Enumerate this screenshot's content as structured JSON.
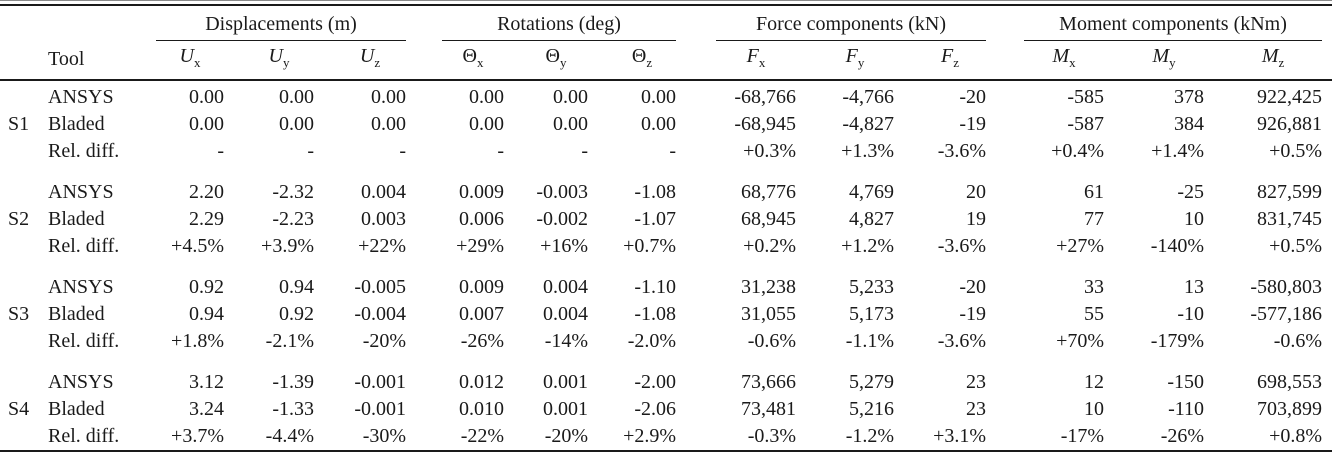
{
  "table": {
    "tool_header": "Tool",
    "groups": [
      {
        "label": "Displacements (m)",
        "columns": [
          {
            "base": "U",
            "sub": "x",
            "italic": true
          },
          {
            "base": "U",
            "sub": "y",
            "italic": true
          },
          {
            "base": "U",
            "sub": "z",
            "italic": true
          }
        ]
      },
      {
        "label": "Rotations (deg)",
        "columns": [
          {
            "base": "Θ",
            "sub": "x",
            "italic": false
          },
          {
            "base": "Θ",
            "sub": "y",
            "italic": false
          },
          {
            "base": "Θ",
            "sub": "z",
            "italic": false
          }
        ]
      },
      {
        "label": "Force components (kN)",
        "columns": [
          {
            "base": "F",
            "sub": "x",
            "italic": true
          },
          {
            "base": "F",
            "sub": "y",
            "italic": true
          },
          {
            "base": "F",
            "sub": "z",
            "italic": true
          }
        ]
      },
      {
        "label": "Moment components (kNm)",
        "columns": [
          {
            "base": "M",
            "sub": "x",
            "italic": true
          },
          {
            "base": "M",
            "sub": "y",
            "italic": true
          },
          {
            "base": "M",
            "sub": "z",
            "italic": true
          }
        ]
      }
    ],
    "blocks": [
      {
        "id": "S1",
        "rows": [
          {
            "tool": "ANSYS",
            "values": [
              "0.00",
              "0.00",
              "0.00",
              "0.00",
              "0.00",
              "0.00",
              "-68,766",
              "-4,766",
              "-20",
              "-585",
              "378",
              "922,425"
            ]
          },
          {
            "tool": "Bladed",
            "values": [
              "0.00",
              "0.00",
              "0.00",
              "0.00",
              "0.00",
              "0.00",
              "-68,945",
              "-4,827",
              "-19",
              "-587",
              "384",
              "926,881"
            ]
          },
          {
            "tool": "Rel. diff.",
            "values": [
              "-",
              "-",
              "-",
              "-",
              "-",
              "-",
              "+0.3%",
              "+1.3%",
              "-3.6%",
              "+0.4%",
              "+1.4%",
              "+0.5%"
            ]
          }
        ]
      },
      {
        "id": "S2",
        "rows": [
          {
            "tool": "ANSYS",
            "values": [
              "2.20",
              "-2.32",
              "0.004",
              "0.009",
              "-0.003",
              "-1.08",
              "68,776",
              "4,769",
              "20",
              "61",
              "-25",
              "827,599"
            ]
          },
          {
            "tool": "Bladed",
            "values": [
              "2.29",
              "-2.23",
              "0.003",
              "0.006",
              "-0.002",
              "-1.07",
              "68,945",
              "4,827",
              "19",
              "77",
              "10",
              "831,745"
            ]
          },
          {
            "tool": "Rel. diff.",
            "values": [
              "+4.5%",
              "+3.9%",
              "+22%",
              "+29%",
              "+16%",
              "+0.7%",
              "+0.2%",
              "+1.2%",
              "-3.6%",
              "+27%",
              "-140%",
              "+0.5%"
            ]
          }
        ]
      },
      {
        "id": "S3",
        "rows": [
          {
            "tool": "ANSYS",
            "values": [
              "0.92",
              "0.94",
              "-0.005",
              "0.009",
              "0.004",
              "-1.10",
              "31,238",
              "5,233",
              "-20",
              "33",
              "13",
              "-580,803"
            ]
          },
          {
            "tool": "Bladed",
            "values": [
              "0.94",
              "0.92",
              "-0.004",
              "0.007",
              "0.004",
              "-1.08",
              "31,055",
              "5,173",
              "-19",
              "55",
              "-10",
              "-577,186"
            ]
          },
          {
            "tool": "Rel. diff.",
            "values": [
              "+1.8%",
              "-2.1%",
              "-20%",
              "-26%",
              "-14%",
              "-2.0%",
              "-0.6%",
              "-1.1%",
              "-3.6%",
              "+70%",
              "-179%",
              "-0.6%"
            ]
          }
        ]
      },
      {
        "id": "S4",
        "rows": [
          {
            "tool": "ANSYS",
            "values": [
              "3.12",
              "-1.39",
              "-0.001",
              "0.012",
              "0.001",
              "-2.00",
              "73,666",
              "5,279",
              "23",
              "12",
              "-150",
              "698,553"
            ]
          },
          {
            "tool": "Bladed",
            "values": [
              "3.24",
              "-1.33",
              "-0.001",
              "0.010",
              "0.001",
              "-2.06",
              "73,481",
              "5,216",
              "23",
              "10",
              "-110",
              "703,899"
            ]
          },
          {
            "tool": "Rel. diff.",
            "values": [
              "+3.7%",
              "-4.4%",
              "-30%",
              "-22%",
              "-20%",
              "+2.9%",
              "-0.3%",
              "-1.2%",
              "+3.1%",
              "-17%",
              "-26%",
              "+0.8%"
            ]
          }
        ]
      }
    ]
  }
}
